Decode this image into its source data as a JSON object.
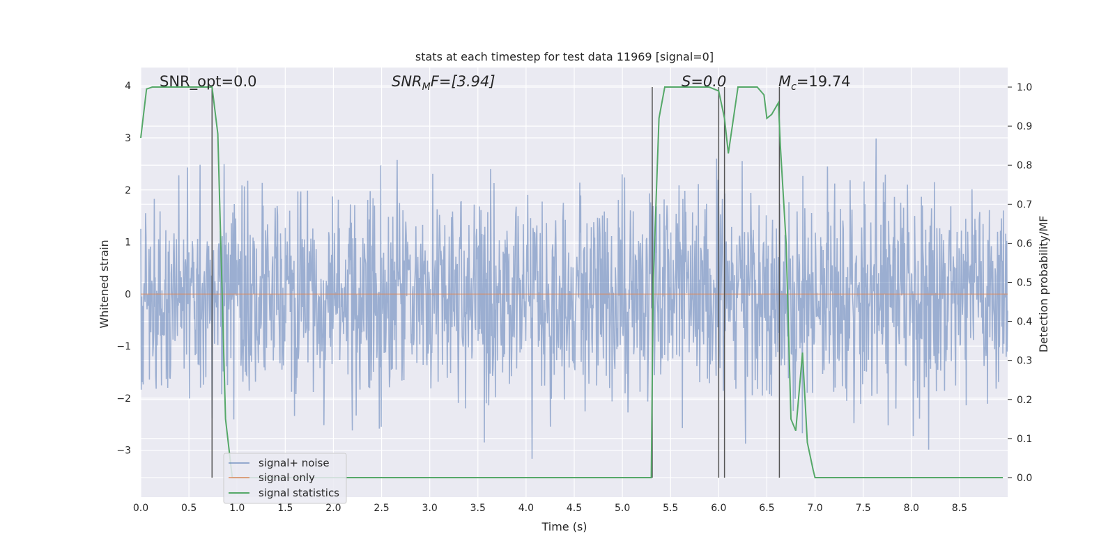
{
  "chart_data": {
    "type": "line",
    "title": "stats at each timestep for test data 11969 [signal=0]",
    "xlabel": "Time (s)",
    "ylabel": "Whitened strain",
    "y2label": "Detection probability/MF",
    "xlim": [
      0.0,
      9.0
    ],
    "ylim": [
      -3.9,
      4.35
    ],
    "y2lim": [
      -0.05,
      1.05
    ],
    "x_ticks": [
      "0.0",
      "0.5",
      "1.0",
      "1.5",
      "2.0",
      "2.5",
      "3.0",
      "3.5",
      "4.0",
      "4.5",
      "5.0",
      "5.5",
      "6.0",
      "6.5",
      "7.0",
      "7.5",
      "8.0",
      "8.5"
    ],
    "y_ticks": [
      "4",
      "3",
      "2",
      "1",
      "0",
      "−1",
      "−2",
      "−3"
    ],
    "y2_ticks": [
      "1.0",
      "0.9",
      "0.8",
      "0.7",
      "0.6",
      "0.5",
      "0.4",
      "0.3",
      "0.2",
      "0.1",
      "0.0"
    ],
    "grid": true,
    "legend_position": "lower-left",
    "annotations": {
      "snr_opt": "SNR_opt=0.0",
      "snr_mf": "SNR",
      "snr_mf_sub": "M",
      "snr_mf_rest": "F=[3.94]",
      "s": "S=0.0",
      "mc": "M",
      "mc_sub": "c",
      "mc_rest": "=19.74"
    },
    "vertical_lines_x": [
      0.74,
      5.31,
      6.0,
      6.06,
      6.63
    ],
    "series": [
      {
        "name": "signal+ noise",
        "color": "#4c72b0",
        "noise_description": "whitened strain, zero-mean, unit variance, 2048 Hz-like dense series",
        "sample_count": 1800,
        "std": 1.0
      },
      {
        "name": "signal only",
        "color": "#dd8452",
        "x": [
          0.0,
          9.0
        ],
        "y": [
          0.0,
          0.0
        ]
      },
      {
        "name": "signal statistics",
        "color": "#55a868",
        "axis": "right",
        "x": [
          0.0,
          0.06,
          0.12,
          0.2,
          0.5,
          0.74,
          0.8,
          0.88,
          0.95,
          5.3,
          5.32,
          5.38,
          5.44,
          5.9,
          6.0,
          6.06,
          6.1,
          6.2,
          6.4,
          6.47,
          6.5,
          6.55,
          6.62,
          6.64,
          6.7,
          6.75,
          6.8,
          6.87,
          6.92,
          6.98,
          7.0,
          8.95
        ],
        "y": [
          0.87,
          0.995,
          1.0,
          1.0,
          1.0,
          1.0,
          0.88,
          0.15,
          0.0,
          0.0,
          0.5,
          0.92,
          1.0,
          1.0,
          0.99,
          0.92,
          0.83,
          1.0,
          1.0,
          0.98,
          0.92,
          0.93,
          0.96,
          0.85,
          0.6,
          0.15,
          0.12,
          0.32,
          0.09,
          0.02,
          0.0,
          0.0
        ]
      }
    ]
  }
}
